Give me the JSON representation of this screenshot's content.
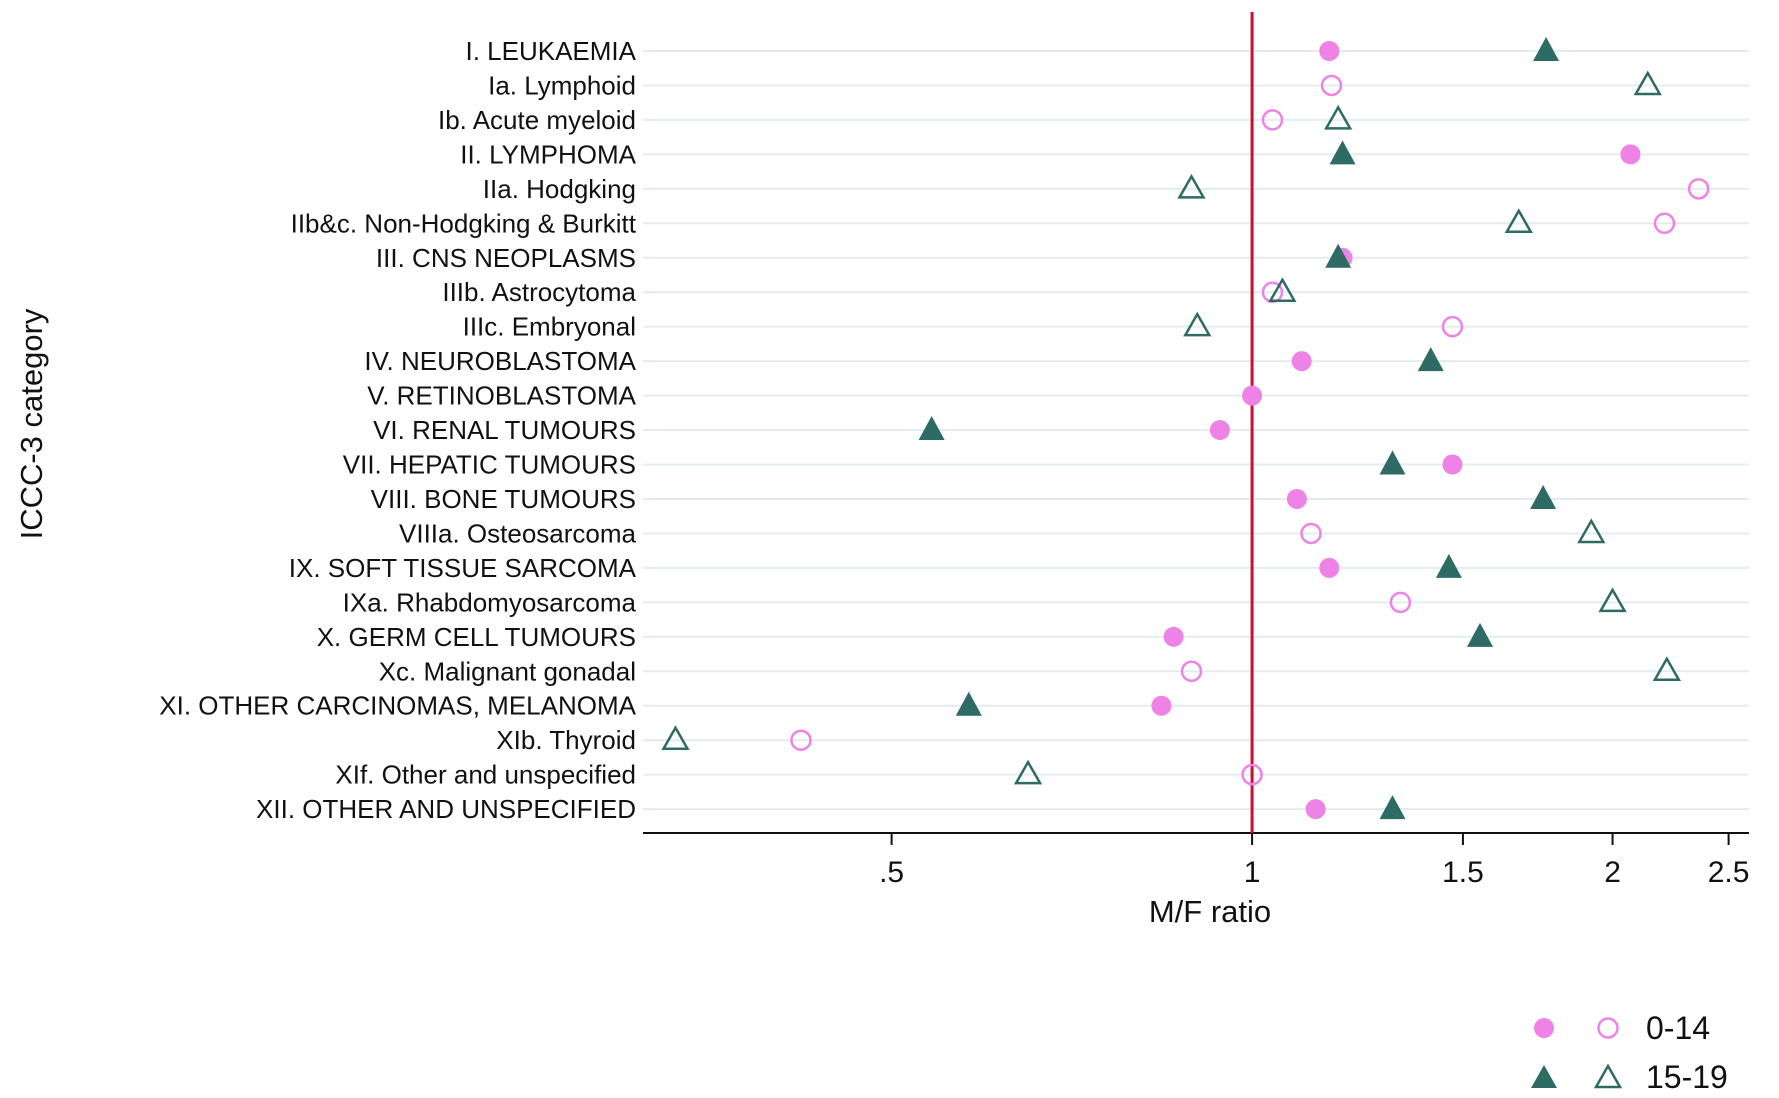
{
  "chart_data": {
    "type": "scatter",
    "xlabel": "M/F ratio",
    "ylabel": "ICCC-3 category",
    "x_scale": "log",
    "xlim": [
      0.31,
      2.6
    ],
    "x_ticks": [
      0.5,
      1,
      1.5,
      2,
      2.5
    ],
    "x_tick_labels": [
      ".5",
      "1",
      "1.5",
      "2",
      "2.5"
    ],
    "reference_line": 1,
    "grid": true,
    "legend_position": "bottom-right",
    "categories": [
      "I. LEUKAEMIA",
      "Ia. Lymphoid",
      "Ib. Acute myeloid",
      "II. LYMPHOMA",
      "IIa. Hodgking",
      "IIb&c. Non-Hodgking & Burkitt",
      "III. CNS NEOPLASMS",
      "IIIb. Astrocytoma",
      "IIIc. Embryonal",
      "IV. NEUROBLASTOMA",
      "V. RETINOBLASTOMA",
      "VI. RENAL TUMOURS",
      "VII. HEPATIC TUMOURS",
      "VIII. BONE TUMOURS",
      "VIIIa. Osteosarcoma",
      "IX. SOFT TISSUE SARCOMA",
      "IXa. Rhabdomyosarcoma",
      "X. GERM CELL TUMOURS",
      "Xc. Malignant gonadal",
      "XI. OTHER CARCINOMAS, MELANOMA",
      "XIb. Thyroid",
      "XIf. Other and unspecified",
      "XII. OTHER AND UNSPECIFIED"
    ],
    "filled": [
      true,
      false,
      false,
      true,
      false,
      false,
      true,
      false,
      false,
      true,
      true,
      true,
      true,
      true,
      false,
      true,
      false,
      true,
      false,
      true,
      false,
      false,
      true
    ],
    "series": [
      {
        "name": "0-14",
        "marker": "circle",
        "color": "#ee82e6",
        "values": [
          1.16,
          1.165,
          1.04,
          2.07,
          2.36,
          2.21,
          1.19,
          1.04,
          1.47,
          1.1,
          1.0,
          0.94,
          1.47,
          1.09,
          1.12,
          1.16,
          1.33,
          0.86,
          0.89,
          0.84,
          0.42,
          1.0,
          1.13
        ]
      },
      {
        "name": "15-19",
        "marker": "triangle",
        "color": "#2d6b64",
        "values": [
          1.76,
          2.14,
          1.18,
          1.19,
          0.89,
          1.67,
          1.18,
          1.06,
          0.9,
          1.41,
          null,
          0.54,
          1.31,
          1.75,
          1.92,
          1.46,
          2.0,
          1.55,
          2.22,
          0.58,
          0.33,
          0.65,
          1.31
        ]
      }
    ]
  }
}
